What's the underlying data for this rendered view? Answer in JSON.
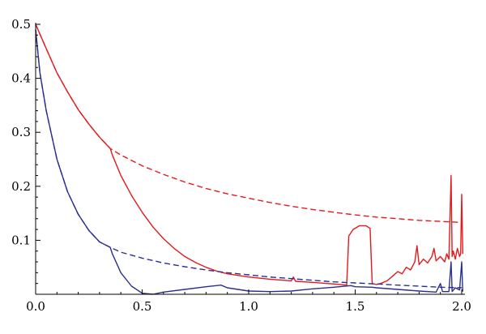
{
  "chart_data": {
    "type": "line",
    "title": "",
    "xlabel": "",
    "ylabel": "",
    "xlim": [
      0.0,
      2.0
    ],
    "ylim": [
      0.0,
      0.5
    ],
    "grid": false,
    "x_ticks": [
      "0.0",
      "0.5",
      "1.0",
      "1.5",
      "2.0"
    ],
    "y_ticks": [
      "0.1",
      "0.2",
      "0.3",
      "0.4",
      "0.5"
    ],
    "colors": {
      "red": "#e41a1c",
      "blue": "#2b2f8f"
    },
    "series": [
      {
        "color": "red",
        "style": "dashed",
        "points": [
          [
            0.0,
            0.5
          ],
          [
            0.05,
            0.455
          ],
          [
            0.1,
            0.41
          ],
          [
            0.15,
            0.375
          ],
          [
            0.2,
            0.342
          ],
          [
            0.25,
            0.315
          ],
          [
            0.3,
            0.291
          ],
          [
            0.35,
            0.27
          ],
          [
            0.4,
            0.258
          ],
          [
            0.5,
            0.238
          ],
          [
            0.6,
            0.222
          ],
          [
            0.7,
            0.208
          ],
          [
            0.8,
            0.196
          ],
          [
            0.9,
            0.186
          ],
          [
            1.0,
            0.178
          ],
          [
            1.1,
            0.17
          ],
          [
            1.2,
            0.163
          ],
          [
            1.3,
            0.157
          ],
          [
            1.4,
            0.152
          ],
          [
            1.5,
            0.147
          ],
          [
            1.6,
            0.143
          ],
          [
            1.7,
            0.14
          ],
          [
            1.8,
            0.137
          ],
          [
            1.9,
            0.135
          ],
          [
            2.0,
            0.133
          ]
        ]
      },
      {
        "color": "red",
        "style": "solid",
        "points": [
          [
            0.0,
            0.5
          ],
          [
            0.05,
            0.455
          ],
          [
            0.1,
            0.41
          ],
          [
            0.15,
            0.375
          ],
          [
            0.2,
            0.342
          ],
          [
            0.25,
            0.315
          ],
          [
            0.3,
            0.291
          ],
          [
            0.35,
            0.27
          ],
          [
            0.36,
            0.258
          ],
          [
            0.4,
            0.22
          ],
          [
            0.45,
            0.183
          ],
          [
            0.5,
            0.152
          ],
          [
            0.55,
            0.125
          ],
          [
            0.6,
            0.103
          ],
          [
            0.65,
            0.085
          ],
          [
            0.7,
            0.07
          ],
          [
            0.75,
            0.059
          ],
          [
            0.8,
            0.05
          ],
          [
            0.85,
            0.043
          ],
          [
            0.9,
            0.038
          ],
          [
            1.0,
            0.032
          ],
          [
            1.1,
            0.028
          ],
          [
            1.2,
            0.025
          ],
          [
            1.21,
            0.032
          ],
          [
            1.22,
            0.024
          ],
          [
            1.3,
            0.022
          ],
          [
            1.4,
            0.019
          ],
          [
            1.46,
            0.017
          ],
          [
            1.47,
            0.108
          ],
          [
            1.49,
            0.12
          ],
          [
            1.52,
            0.127
          ],
          [
            1.55,
            0.127
          ],
          [
            1.57,
            0.122
          ],
          [
            1.58,
            0.02
          ],
          [
            1.6,
            0.018
          ],
          [
            1.62,
            0.02
          ],
          [
            1.65,
            0.025
          ],
          [
            1.68,
            0.035
          ],
          [
            1.7,
            0.042
          ],
          [
            1.72,
            0.038
          ],
          [
            1.74,
            0.05
          ],
          [
            1.76,
            0.045
          ],
          [
            1.78,
            0.06
          ],
          [
            1.79,
            0.09
          ],
          [
            1.8,
            0.055
          ],
          [
            1.82,
            0.065
          ],
          [
            1.84,
            0.058
          ],
          [
            1.86,
            0.07
          ],
          [
            1.87,
            0.085
          ],
          [
            1.88,
            0.062
          ],
          [
            1.9,
            0.07
          ],
          [
            1.92,
            0.06
          ],
          [
            1.93,
            0.075
          ],
          [
            1.94,
            0.065
          ],
          [
            1.95,
            0.22
          ],
          [
            1.955,
            0.07
          ],
          [
            1.96,
            0.08
          ],
          [
            1.97,
            0.065
          ],
          [
            1.98,
            0.085
          ],
          [
            1.99,
            0.07
          ],
          [
            1.995,
            0.075
          ],
          [
            2.0,
            0.185
          ],
          [
            2.005,
            0.075
          ]
        ]
      },
      {
        "color": "blue",
        "style": "dashed",
        "points": [
          [
            0.0,
            0.49
          ],
          [
            0.02,
            0.41
          ],
          [
            0.05,
            0.34
          ],
          [
            0.1,
            0.25
          ],
          [
            0.15,
            0.19
          ],
          [
            0.2,
            0.148
          ],
          [
            0.25,
            0.118
          ],
          [
            0.3,
            0.097
          ],
          [
            0.35,
            0.087
          ],
          [
            0.4,
            0.078
          ],
          [
            0.5,
            0.067
          ],
          [
            0.6,
            0.058
          ],
          [
            0.7,
            0.051
          ],
          [
            0.8,
            0.045
          ],
          [
            0.9,
            0.04
          ],
          [
            1.0,
            0.036
          ],
          [
            1.1,
            0.032
          ],
          [
            1.2,
            0.029
          ],
          [
            1.3,
            0.026
          ],
          [
            1.4,
            0.023
          ],
          [
            1.5,
            0.021
          ],
          [
            1.6,
            0.019
          ],
          [
            1.7,
            0.017
          ],
          [
            1.8,
            0.015
          ],
          [
            1.9,
            0.013
          ],
          [
            2.0,
            0.012
          ]
        ]
      },
      {
        "color": "blue",
        "style": "solid",
        "points": [
          [
            0.0,
            0.49
          ],
          [
            0.02,
            0.41
          ],
          [
            0.05,
            0.34
          ],
          [
            0.1,
            0.25
          ],
          [
            0.15,
            0.19
          ],
          [
            0.2,
            0.148
          ],
          [
            0.25,
            0.118
          ],
          [
            0.3,
            0.097
          ],
          [
            0.35,
            0.087
          ],
          [
            0.36,
            0.075
          ],
          [
            0.4,
            0.04
          ],
          [
            0.45,
            0.015
          ],
          [
            0.5,
            0.002
          ],
          [
            0.55,
            0.0
          ],
          [
            0.6,
            0.004
          ],
          [
            0.7,
            0.009
          ],
          [
            0.8,
            0.014
          ],
          [
            0.87,
            0.017
          ],
          [
            0.9,
            0.012
          ],
          [
            1.0,
            0.006
          ],
          [
            1.1,
            0.005
          ],
          [
            1.2,
            0.006
          ],
          [
            1.3,
            0.01
          ],
          [
            1.4,
            0.013
          ],
          [
            1.48,
            0.016
          ],
          [
            1.5,
            0.014
          ],
          [
            1.58,
            0.013
          ],
          [
            1.6,
            0.012
          ],
          [
            1.7,
            0.009
          ],
          [
            1.8,
            0.006
          ],
          [
            1.88,
            0.004
          ],
          [
            1.9,
            0.02
          ],
          [
            1.91,
            0.005
          ],
          [
            1.94,
            0.005
          ],
          [
            1.95,
            0.06
          ],
          [
            1.955,
            0.005
          ],
          [
            1.97,
            0.012
          ],
          [
            1.99,
            0.008
          ],
          [
            2.0,
            0.06
          ],
          [
            2.005,
            0.005
          ]
        ]
      }
    ]
  }
}
